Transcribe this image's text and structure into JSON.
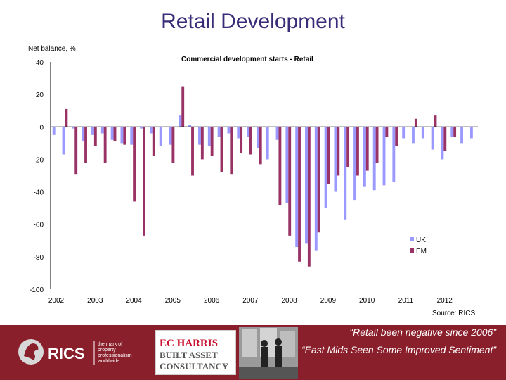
{
  "slide": {
    "title": "Retail Development"
  },
  "footer": {
    "quote1": "“Retail been negative since 2006”",
    "quote2": "“East Mids Seen Some Improved Sentiment”",
    "rics": {
      "name": "RICS",
      "tagline": [
        "the mark of",
        "property",
        "professionalism",
        "worldwide"
      ]
    },
    "ec_harris": {
      "line1": "EC HARRIS",
      "line2": "BUILT ASSET",
      "line3": "CONSULTANCY"
    }
  },
  "colors": {
    "uk": "#9999ff",
    "em": "#993366",
    "footer_bg": "#8a1f2c",
    "title": "#3a2c78"
  },
  "chart_data": {
    "type": "bar",
    "title": "Commercial development starts - Retail",
    "ylabel": "Net balance, %",
    "source": "Source: RICS",
    "ylim": [
      -100,
      40
    ],
    "yticks": [
      40,
      20,
      0,
      -20,
      -40,
      -60,
      -80,
      -100
    ],
    "year_labels": [
      "2002",
      "2003",
      "2004",
      "2005",
      "2006",
      "2007",
      "2008",
      "2009",
      "2010",
      "2011",
      "2012"
    ],
    "grid": false,
    "legend": "right",
    "categories": [
      "2002 Q1",
      "2002 Q2",
      "2002 Q3",
      "2002 Q4",
      "2003 Q1",
      "2003 Q2",
      "2003 Q3",
      "2003 Q4",
      "2004 Q1",
      "2004 Q2",
      "2004 Q3",
      "2004 Q4",
      "2005 Q1",
      "2005 Q2",
      "2005 Q3",
      "2005 Q4",
      "2006 Q1",
      "2006 Q2",
      "2006 Q3",
      "2006 Q4",
      "2007 Q1",
      "2007 Q2",
      "2007 Q3",
      "2007 Q4",
      "2008 Q1",
      "2008 Q2",
      "2008 Q3",
      "2008 Q4",
      "2009 Q1",
      "2009 Q2",
      "2009 Q3",
      "2009 Q4",
      "2010 Q1",
      "2010 Q2",
      "2010 Q3",
      "2010 Q4",
      "2011 Q1",
      "2011 Q2",
      "2011 Q3",
      "2011 Q4",
      "2012 Q1",
      "2012 Q2",
      "2012 Q3",
      "2012 Q4"
    ],
    "series": [
      {
        "name": "UK",
        "values": [
          -5,
          -17,
          -1,
          -9,
          -5,
          -4,
          -8,
          -10,
          -11,
          -1,
          -4,
          -12,
          -11,
          7,
          1,
          -11,
          -12,
          -6,
          -4,
          -7,
          -6,
          -13,
          -20,
          -8,
          -47,
          -74,
          -72,
          -76,
          -50,
          -40,
          -57,
          -45,
          -37,
          -39,
          -36,
          -34,
          -7,
          -10,
          -7,
          -14,
          -20,
          -6,
          -10,
          -7
        ]
      },
      {
        "name": "EM",
        "values": [
          0,
          11,
          -29,
          -22,
          -12,
          -22,
          -9,
          -11,
          -46,
          -67,
          -18,
          0,
          -22,
          25,
          -30,
          -20,
          -18,
          -28,
          -29,
          -16,
          -17,
          -23,
          0,
          -48,
          -67,
          -83,
          -86,
          -65,
          -35,
          -30,
          -25,
          -30,
          -27,
          -22,
          -6,
          -12,
          0,
          5,
          0,
          7,
          -15,
          -6,
          0,
          0
        ]
      }
    ]
  }
}
